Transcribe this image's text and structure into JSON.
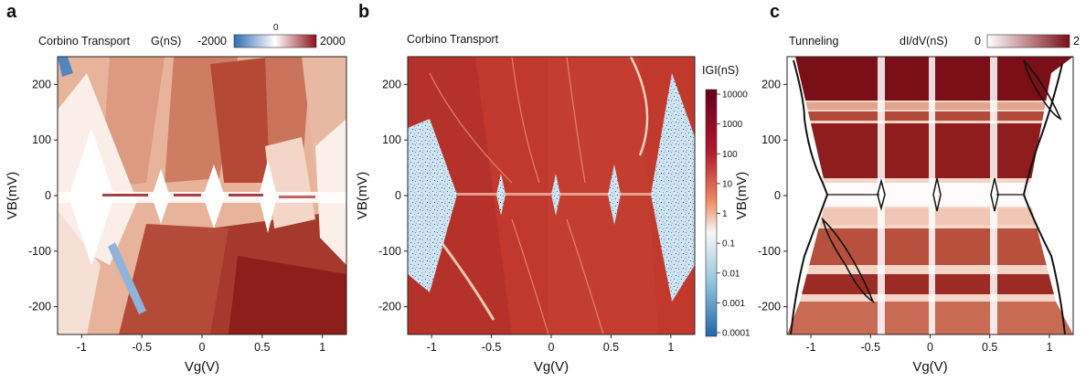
{
  "figure": {
    "panels": [
      {
        "label": "a",
        "title": "Corbino Transport",
        "colorbar": {
          "label": "G(nS)",
          "min_label": "-2000",
          "max_label": "2000",
          "center_label": "0",
          "colors": [
            "#2f6db3",
            "#ffffff",
            "#8c1218"
          ]
        }
      },
      {
        "label": "b",
        "title": "Corbino Transport",
        "colorbar": {
          "label": "|G|(nS)",
          "label_shown": "IGI(nS)",
          "scale": "log",
          "tick_labels": [
            "10000",
            "1000",
            "100",
            "10",
            "1",
            "0.1",
            "0.01",
            "0.001",
            "0.0001"
          ],
          "colors": [
            "#2166ac",
            "#92c5de",
            "#f7f7f7",
            "#ef8a62",
            "#b2182b",
            "#67001f"
          ]
        }
      },
      {
        "label": "c",
        "title": "Tunneling",
        "colorbar": {
          "label": "dI/dV(nS)",
          "min_label": "0",
          "max_label": "2",
          "colors": [
            "#ffffff",
            "#7a0f17"
          ]
        }
      }
    ],
    "x_axis_label": "Vg(V)",
    "y_axis_label": "VB(mV)"
  },
  "chart_data": [
    {
      "type": "heatmap",
      "title": "Corbino Transport",
      "xlabel": "Vg(V)",
      "ylabel": "VB(mV)",
      "xlim": [
        -1.2,
        1.2
      ],
      "ylim": [
        -250,
        250
      ],
      "xticks": [
        -1,
        -0.5,
        0,
        0.5,
        1
      ],
      "xtick_labels": [
        "-1",
        "-0.5",
        "0",
        "0.5",
        "1"
      ],
      "yticks": [
        200,
        100,
        0,
        -100,
        -200
      ],
      "ytick_labels": [
        "200",
        "100",
        "0",
        "-100",
        "-200"
      ],
      "zlabel": "G(nS)",
      "zlim": [
        -2000,
        2000
      ],
      "gap_centers_vg": [
        -0.82,
        -0.43,
        0.03,
        0.5
      ]
    },
    {
      "type": "heatmap",
      "title": "Corbino Transport",
      "xlabel": "Vg(V)",
      "ylabel": "VB(mV)",
      "xlim": [
        -1.2,
        1.2
      ],
      "ylim": [
        -250,
        250
      ],
      "xticks": [
        -1,
        -0.5,
        0,
        0.5,
        1
      ],
      "xtick_labels": [
        "-1",
        "-0.5",
        "0",
        "0.5",
        "1"
      ],
      "yticks": [
        200,
        100,
        0,
        -100,
        -200
      ],
      "ytick_labels": [
        "200",
        "100",
        "0",
        "-100",
        "-200"
      ],
      "zlabel": "|G|(nS)",
      "zscale": "log",
      "zlim": [
        0.0001,
        10000
      ],
      "gap_centers_vg": [
        -1.02,
        -0.45,
        0.05,
        0.58,
        1.0
      ]
    },
    {
      "type": "heatmap",
      "title": "Tunneling",
      "xlabel": "Vg(V)",
      "ylabel": "VB(mV)",
      "xlim": [
        -1.2,
        1.2
      ],
      "ylim": [
        -250,
        250
      ],
      "xticks": [
        -1,
        -0.5,
        0,
        0.5,
        1
      ],
      "xtick_labels": [
        "-1",
        "-0.5",
        "0",
        "0.5",
        "1"
      ],
      "yticks": [
        200,
        100,
        0,
        -100,
        -200
      ],
      "ytick_labels": [
        "200",
        "100",
        "0",
        "-100",
        "-200"
      ],
      "zlabel": "dI/dV(nS)",
      "zlim": [
        0,
        2
      ],
      "gap_centers_vg": [
        -1.0,
        -0.45,
        0.02,
        0.45,
        1.0
      ]
    }
  ]
}
